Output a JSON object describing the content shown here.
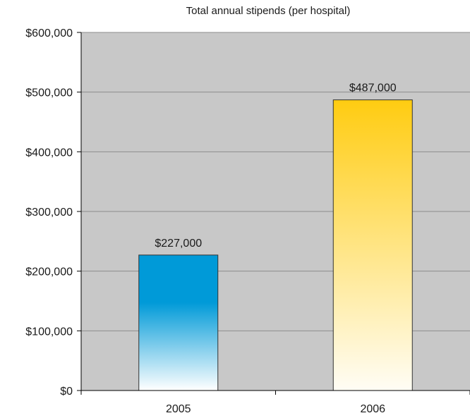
{
  "chart_data": {
    "type": "bar",
    "title": "Total annual stipends (per hospital)",
    "xlabel": "",
    "ylabel": "",
    "categories": [
      "2005",
      "2006"
    ],
    "values": [
      227000,
      487000
    ],
    "data_labels": [
      "$227,000",
      "$487,000"
    ],
    "ylim": [
      0,
      600000
    ],
    "yticks": [
      0,
      100000,
      200000,
      300000,
      400000,
      500000,
      600000
    ],
    "ytick_labels": [
      "$0",
      "$100,000",
      "$200,000",
      "$300,000",
      "$400,000",
      "$500,000",
      "$600,000"
    ],
    "grid": true,
    "legend": "none",
    "colors": {
      "plot_background": "#c8c8c8",
      "gridline": "#8c8c8c",
      "bar_2005_top": "#009ad8",
      "bar_2005_bottom": "#ffffff",
      "bar_2006_top": "#ffcc11",
      "bar_2006_bottom": "#fffdf5"
    }
  }
}
